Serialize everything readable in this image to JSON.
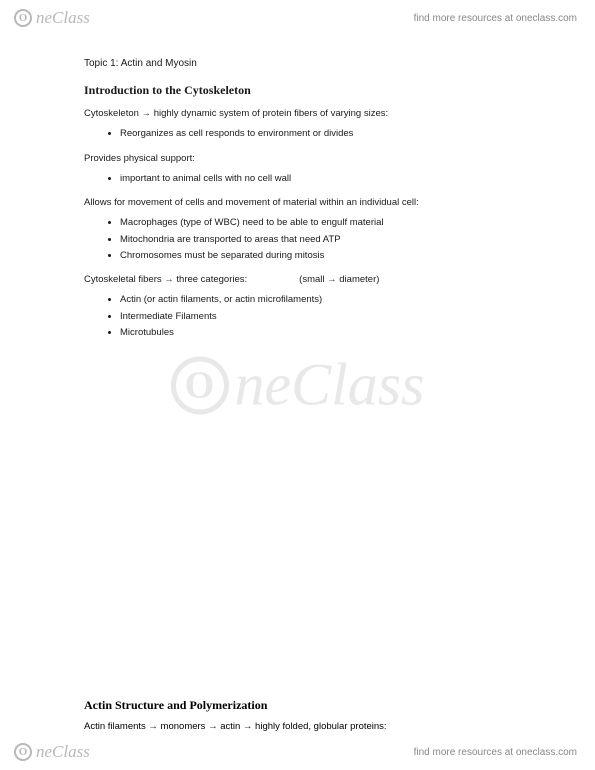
{
  "brand": {
    "icon_letter": "O",
    "name": "neClass"
  },
  "resource_text": "find more resources at oneclass.com",
  "watermark": {
    "icon_letter": "O",
    "text": "neClass"
  },
  "doc": {
    "topic": "Topic 1: Actin and Myosin",
    "heading1": "Introduction to the Cytoskeleton",
    "p1": "Cytoskeleton → highly dynamic system of protein fibers of varying sizes:",
    "list1": [
      "Reorganizes as cell responds to environment or divides"
    ],
    "p2": "Provides physical support:",
    "list2": [
      "important to animal cells with no cell wall"
    ],
    "p3": "Allows for movement of cells and movement of material within an individual cell:",
    "list3": [
      "Macrophages (type of WBC) need to be able to engulf material",
      "Mitochondria are transported to areas that need ATP",
      "Chromosomes must be separated during mitosis"
    ],
    "p4a": "Cytoskeletal fibers → three categories:",
    "p4b": "(small → diameter)",
    "list4": [
      "Actin (or actin filaments, or actin microfilaments)",
      "Intermediate Filaments",
      "Microtubules"
    ],
    "heading2": "Actin Structure and Polymerization",
    "p5": "Actin filaments → monomers → actin → highly folded, globular proteins:"
  }
}
